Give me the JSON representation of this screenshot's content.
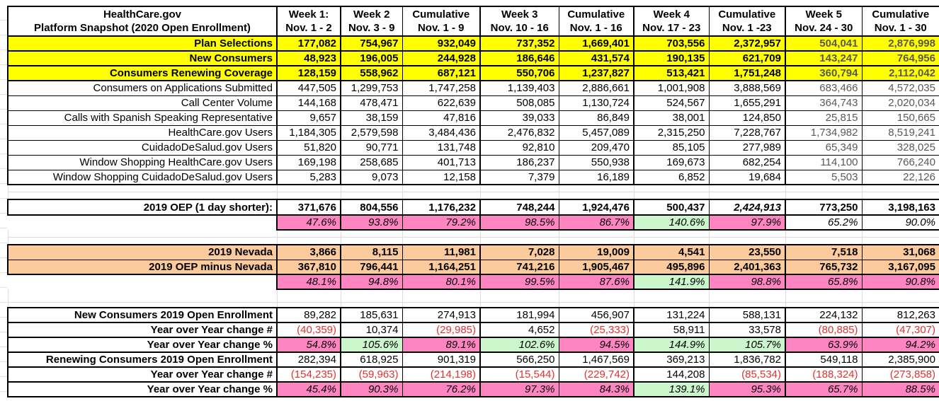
{
  "colors": {
    "highlight_yellow": "#ffff00",
    "highlight_orange": "#fbcb9e",
    "pct_pink": "#ff85c2",
    "pct_green": "#ccf7cc",
    "negative_red": "#e03232",
    "muted_gray": "#595959"
  },
  "table": {
    "title_line1": "HealthCare.gov",
    "title_line2": "Platform Snapshot (2020 Open Enrollment)",
    "columns": [
      {
        "line1": "Week 1:",
        "line2": "Nov. 1 - 2"
      },
      {
        "line1": "Week 2",
        "line2": "Nov. 3 - 9"
      },
      {
        "line1": "Cumulative",
        "line2": "Nov. 1 - 9"
      },
      {
        "line1": "Week 3",
        "line2": "Nov. 10 - 16"
      },
      {
        "line1": "Cumulative",
        "line2": "Nov. 1 - 16"
      },
      {
        "line1": "Week 4",
        "line2": "Nov. 17 - 23"
      },
      {
        "line1": "Cumulative",
        "line2": "Nov. 1 -23"
      },
      {
        "line1": "Week 5",
        "line2": "Nov. 24 - 30"
      },
      {
        "line1": "Cumulative",
        "line2": "Nov. 1 - 30"
      }
    ],
    "sections": [
      {
        "name": "platform-metrics",
        "rows": [
          {
            "label": "Plan Selections",
            "style": "yellow",
            "values": [
              "177,082",
              "754,967",
              "932,049",
              "737,352",
              "1,669,401",
              "703,556",
              "2,372,957",
              "504,041",
              "2,876,998"
            ]
          },
          {
            "label": "New Consumers",
            "style": "yellow",
            "values": [
              "48,923",
              "196,005",
              "244,928",
              "186,646",
              "431,574",
              "190,135",
              "621,709",
              "143,247",
              "764,956"
            ]
          },
          {
            "label": "Consumers Renewing Coverage",
            "style": "yellow",
            "values": [
              "128,159",
              "558,962",
              "687,121",
              "550,706",
              "1,237,827",
              "513,421",
              "1,751,248",
              "360,794",
              "2,112,042"
            ]
          },
          {
            "label": "Consumers on Applications Submitted",
            "style": "plain",
            "values": [
              "447,505",
              "1,299,753",
              "1,747,258",
              "1,139,403",
              "2,886,661",
              "1,001,908",
              "3,888,569",
              "683,466",
              "4,572,035"
            ]
          },
          {
            "label": "Call Center Volume",
            "style": "plain",
            "values": [
              "144,168",
              "478,471",
              "622,639",
              "508,085",
              "1,130,724",
              "524,567",
              "1,655,291",
              "364,743",
              "2,020,034"
            ]
          },
          {
            "label": "Calls with Spanish Speaking Representative",
            "style": "plain",
            "values": [
              "9,657",
              "38,159",
              "47,816",
              "39,033",
              "86,849",
              "38,001",
              "124,850",
              "25,815",
              "150,665"
            ]
          },
          {
            "label": "HealthCare.gov Users",
            "style": "plain",
            "values": [
              "1,184,305",
              "2,579,598",
              "3,484,436",
              "2,476,832",
              "5,457,089",
              "2,315,250",
              "7,228,767",
              "1,734,982",
              "8,519,241"
            ]
          },
          {
            "label": "CuidadoDeSalud.gov Users",
            "style": "plain",
            "values": [
              "51,820",
              "90,771",
              "131,748",
              "92,810",
              "209,470",
              "85,105",
              "277,989",
              "65,349",
              "328,025"
            ]
          },
          {
            "label": "Window Shopping HealthCare.gov Users",
            "style": "plain",
            "values": [
              "169,198",
              "258,685",
              "401,713",
              "186,237",
              "550,938",
              "169,673",
              "682,254",
              "114,100",
              "766,240"
            ]
          },
          {
            "label": "Window Shopping CuidadoDeSalud.gov Users",
            "style": "plain",
            "values": [
              "5,283",
              "9,073",
              "12,158",
              "7,379",
              "16,189",
              "6,852",
              "19,684",
              "5,503",
              "22,126"
            ]
          }
        ]
      },
      {
        "name": "oep-2019",
        "rows": [
          {
            "label": "2019 OEP (1 day shorter):",
            "style": "oep",
            "italic_cols": [
              6
            ],
            "values": [
              "371,676",
              "804,556",
              "1,176,232",
              "748,244",
              "1,924,476",
              "500,437",
              "2,424,913",
              "773,250",
              "3,198,163"
            ]
          },
          {
            "label": "",
            "style": "pct",
            "values": [
              "47.6%",
              "93.8%",
              "79.2%",
              "98.5%",
              "86.7%",
              "140.6%",
              "97.9%",
              "65.2%",
              "90.0%"
            ],
            "fills": [
              "pink",
              "pink",
              "pink",
              "pink",
              "pink",
              "green",
              "pink",
              "white",
              "white"
            ]
          }
        ]
      },
      {
        "name": "nevada-adjustment",
        "rows": [
          {
            "label": "2019 Nevada",
            "style": "orange",
            "values": [
              "3,866",
              "8,115",
              "11,981",
              "7,028",
              "19,009",
              "4,541",
              "23,550",
              "7,518",
              "31,068"
            ]
          },
          {
            "label": "2019 OEP minus Nevada",
            "style": "orange",
            "values": [
              "367,810",
              "796,441",
              "1,164,251",
              "741,216",
              "1,905,467",
              "495,896",
              "2,401,363",
              "765,732",
              "3,167,095"
            ]
          },
          {
            "label": "",
            "style": "pct",
            "values": [
              "48.1%",
              "94.8%",
              "80.1%",
              "99.5%",
              "87.6%",
              "141.9%",
              "98.8%",
              "65.8%",
              "90.8%"
            ],
            "fills": [
              "pink",
              "pink",
              "pink",
              "pink",
              "pink",
              "green",
              "pink",
              "pink",
              "pink"
            ]
          }
        ]
      },
      {
        "name": "year-over-year",
        "rows": [
          {
            "label": "New Consumers 2019 Open Enrollment",
            "style": "yoy-base",
            "values": [
              "89,282",
              "185,631",
              "274,913",
              "181,994",
              "456,907",
              "131,224",
              "588,131",
              "224,132",
              "812,263"
            ]
          },
          {
            "label": "Year over Year change #",
            "style": "yoy-num",
            "values": [
              "(40,359)",
              "10,374",
              "(29,985)",
              "4,652",
              "(25,333)",
              "58,911",
              "33,578",
              "(80,885)",
              "(47,307)"
            ]
          },
          {
            "label": "Year over Year change %",
            "style": "yoy-pct",
            "values": [
              "54.8%",
              "105.6%",
              "89.1%",
              "102.6%",
              "94.5%",
              "144.9%",
              "105.7%",
              "63.9%",
              "94.2%"
            ],
            "fills": [
              "pink",
              "green",
              "pink",
              "green",
              "pink",
              "green",
              "green",
              "pink",
              "pink"
            ]
          },
          {
            "label": "Renewing Consumers 2019 Open Enrollment",
            "style": "yoy-base",
            "values": [
              "282,394",
              "618,925",
              "901,319",
              "566,250",
              "1,467,569",
              "369,213",
              "1,836,782",
              "549,118",
              "2,385,900"
            ]
          },
          {
            "label": "Year over Year change #",
            "style": "yoy-num",
            "values": [
              "(154,235)",
              "(59,963)",
              "(214,198)",
              "(15,544)",
              "(229,742)",
              "144,208",
              "(85,534)",
              "(188,324)",
              "(273,858)"
            ]
          },
          {
            "label": "Year over Year change %",
            "style": "yoy-pct",
            "values": [
              "45.4%",
              "90.3%",
              "76.2%",
              "97.3%",
              "84.3%",
              "139.1%",
              "95.3%",
              "65.7%",
              "88.5%"
            ],
            "fills": [
              "pink",
              "pink",
              "pink",
              "pink",
              "pink",
              "green",
              "pink",
              "pink",
              "pink"
            ]
          }
        ]
      }
    ]
  }
}
